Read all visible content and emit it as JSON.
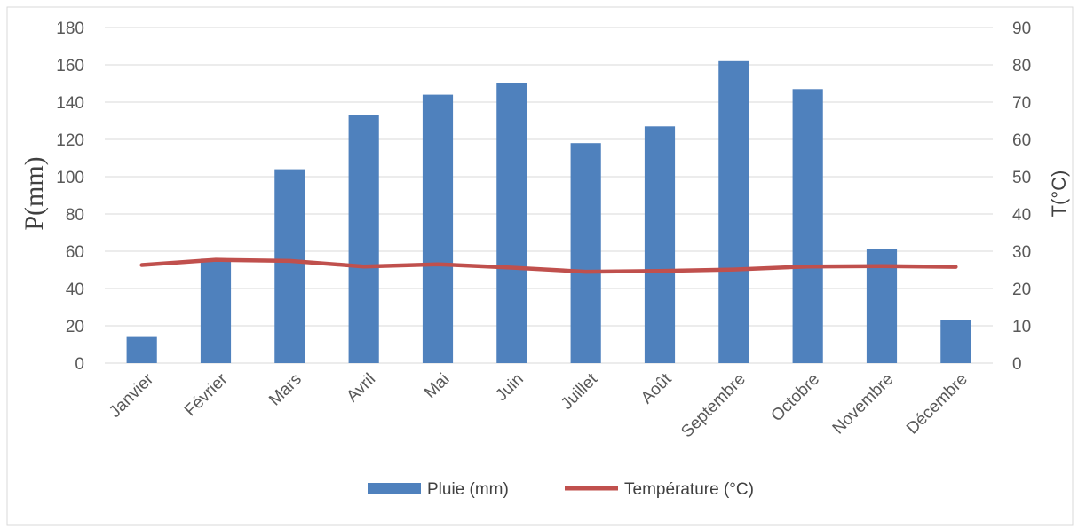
{
  "colors": {
    "bar": "#4f81bd",
    "line": "#c0504d",
    "grid": "#d9d9d9",
    "text": "#595959"
  },
  "chart_data": {
    "type": "bar",
    "categories": [
      "Janvier",
      "Février",
      "Mars",
      "Avril",
      "Mai",
      "Juin",
      "Juillet",
      "Août",
      "Septembre",
      "Octobre",
      "Novembre",
      "Décembre"
    ],
    "series": [
      {
        "name": "Pluie (mm)",
        "type": "bar",
        "axis": "left",
        "values": [
          14,
          56,
          104,
          133,
          144,
          150,
          118,
          127,
          162,
          147,
          61,
          23
        ]
      },
      {
        "name": "Température (°C)",
        "type": "line",
        "axis": "right",
        "values": [
          26.3,
          27.7,
          27.4,
          25.9,
          26.5,
          25.6,
          24.5,
          24.7,
          25.1,
          25.9,
          26.0,
          25.8
        ]
      }
    ],
    "ylabel": "P(mm)",
    "y2label": "T(°C)",
    "ylim": [
      0,
      180
    ],
    "y2lim": [
      0,
      90
    ],
    "yticks": [
      "0",
      "20",
      "40",
      "60",
      "80",
      "100",
      "120",
      "140",
      "160",
      "180"
    ],
    "y2ticks": [
      "0",
      "10",
      "20",
      "30",
      "40",
      "50",
      "60",
      "70",
      "80",
      "90"
    ],
    "grid": true,
    "legend": "bottom"
  }
}
